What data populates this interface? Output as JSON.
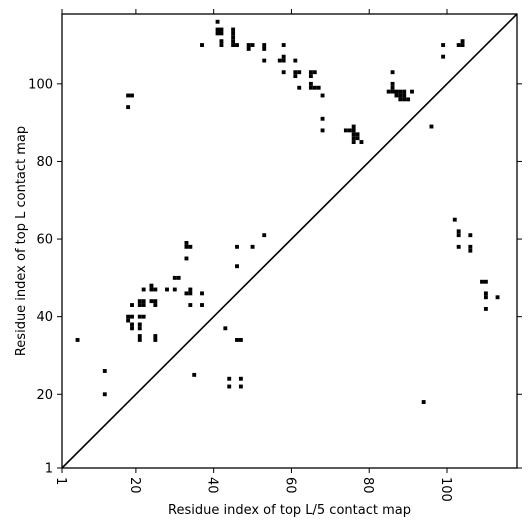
{
  "chart_data": {
    "type": "scatter",
    "title": "",
    "xlabel": "Residue index of top L/5 contact map",
    "ylabel": "Residue index of top L contact map",
    "xlim": [
      1,
      118
    ],
    "ylim": [
      1,
      118
    ],
    "x_ticks": [
      1,
      20,
      40,
      60,
      80,
      100
    ],
    "y_ticks": [
      1,
      20,
      40,
      60,
      80,
      100
    ],
    "x_tick_rotation": 90,
    "grid": false,
    "marker": "square",
    "color": "#000000",
    "diagonal": {
      "from": [
        1,
        1
      ],
      "to": [
        118,
        118
      ],
      "color": "#000000"
    },
    "series": [
      {
        "points": [
          [
            5,
            34
          ],
          [
            12,
            26
          ],
          [
            12,
            20
          ],
          [
            18,
            97
          ],
          [
            19,
            97
          ],
          [
            18,
            94
          ],
          [
            18,
            40
          ],
          [
            18,
            39
          ],
          [
            19,
            40
          ],
          [
            19,
            38
          ],
          [
            19,
            37
          ],
          [
            19,
            43
          ],
          [
            21,
            44
          ],
          [
            21,
            43
          ],
          [
            21,
            40
          ],
          [
            21,
            38
          ],
          [
            21,
            37
          ],
          [
            21,
            35
          ],
          [
            21,
            34
          ],
          [
            22,
            47
          ],
          [
            22,
            44
          ],
          [
            22,
            43
          ],
          [
            22,
            40
          ],
          [
            24,
            48
          ],
          [
            24,
            47
          ],
          [
            24,
            44
          ],
          [
            25,
            47
          ],
          [
            25,
            44
          ],
          [
            25,
            43
          ],
          [
            25,
            35
          ],
          [
            25,
            34
          ],
          [
            28,
            47
          ],
          [
            30,
            50
          ],
          [
            30,
            47
          ],
          [
            31,
            50
          ],
          [
            33,
            59
          ],
          [
            33,
            58
          ],
          [
            33,
            55
          ],
          [
            33,
            46
          ],
          [
            34,
            58
          ],
          [
            34,
            47
          ],
          [
            34,
            46
          ],
          [
            34,
            43
          ],
          [
            35,
            25
          ],
          [
            37,
            110
          ],
          [
            37,
            46
          ],
          [
            37,
            43
          ],
          [
            41,
            116
          ],
          [
            41,
            114
          ],
          [
            41,
            113
          ],
          [
            42,
            114
          ],
          [
            42,
            113
          ],
          [
            42,
            111
          ],
          [
            42,
            110
          ],
          [
            43,
            37
          ],
          [
            44,
            24
          ],
          [
            44,
            22
          ],
          [
            45,
            114
          ],
          [
            45,
            113
          ],
          [
            45,
            112
          ],
          [
            45,
            111
          ],
          [
            45,
            110
          ],
          [
            46,
            110
          ],
          [
            46,
            58
          ],
          [
            46,
            53
          ],
          [
            46,
            34
          ],
          [
            47,
            34
          ],
          [
            47,
            24
          ],
          [
            47,
            22
          ],
          [
            49,
            110
          ],
          [
            49,
            109
          ],
          [
            50,
            110
          ],
          [
            50,
            58
          ],
          [
            53,
            110
          ],
          [
            53,
            109
          ],
          [
            53,
            106
          ],
          [
            53,
            61
          ],
          [
            57,
            106
          ],
          [
            58,
            110
          ],
          [
            58,
            107
          ],
          [
            58,
            106
          ],
          [
            58,
            103
          ],
          [
            61,
            106
          ],
          [
            61,
            103
          ],
          [
            61,
            102
          ],
          [
            62,
            103
          ],
          [
            62,
            99
          ],
          [
            65,
            103
          ],
          [
            65,
            102
          ],
          [
            65,
            100
          ],
          [
            65,
            99
          ],
          [
            66,
            103
          ],
          [
            66,
            99
          ],
          [
            67,
            99
          ],
          [
            68,
            97
          ],
          [
            68,
            91
          ],
          [
            68,
            88
          ],
          [
            74,
            88
          ],
          [
            75,
            88
          ],
          [
            76,
            89
          ],
          [
            76,
            88
          ],
          [
            76,
            87
          ],
          [
            76,
            86
          ],
          [
            76,
            85
          ],
          [
            77,
            87
          ],
          [
            77,
            86
          ],
          [
            78,
            85
          ],
          [
            85,
            98
          ],
          [
            86,
            103
          ],
          [
            86,
            100
          ],
          [
            86,
            99
          ],
          [
            86,
            98
          ],
          [
            87,
            98
          ],
          [
            87,
            97
          ],
          [
            88,
            98
          ],
          [
            88,
            97
          ],
          [
            88,
            96
          ],
          [
            89,
            98
          ],
          [
            89,
            97
          ],
          [
            89,
            96
          ],
          [
            90,
            96
          ],
          [
            91,
            98
          ],
          [
            94,
            18
          ],
          [
            96,
            89
          ],
          [
            99,
            110
          ],
          [
            99,
            107
          ],
          [
            102,
            65
          ],
          [
            103,
            62
          ],
          [
            103,
            61
          ],
          [
            103,
            58
          ],
          [
            103,
            110
          ],
          [
            104,
            111
          ],
          [
            104,
            110
          ],
          [
            106,
            61
          ],
          [
            106,
            58
          ],
          [
            106,
            57
          ],
          [
            109,
            49
          ],
          [
            110,
            49
          ],
          [
            110,
            46
          ],
          [
            110,
            45
          ],
          [
            110,
            42
          ],
          [
            113,
            45
          ]
        ]
      }
    ]
  }
}
